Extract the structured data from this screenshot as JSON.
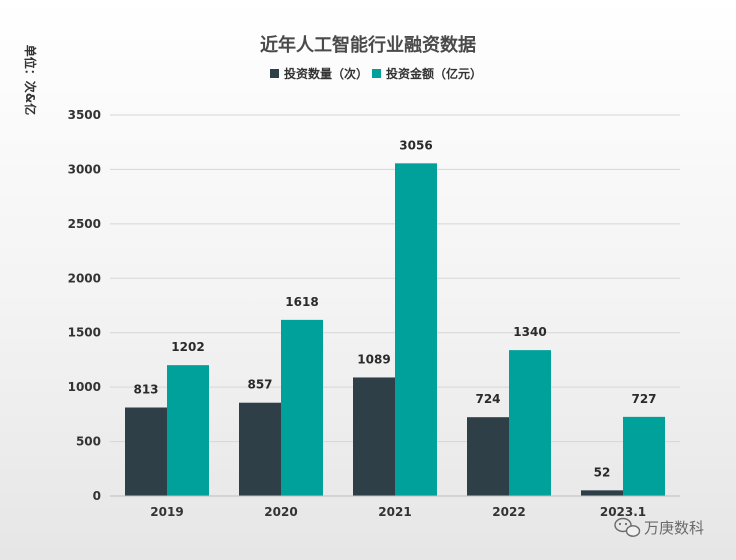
{
  "chart_data": {
    "type": "bar",
    "title": "近年人工智能行业融资数据",
    "unit_label": "单位：次&亿",
    "categories": [
      "2019",
      "2020",
      "2021",
      "2022",
      "2023.1"
    ],
    "series": [
      {
        "name": "投资数量（次）",
        "color": "#2e3f48",
        "values": [
          813,
          857,
          1089,
          724,
          52
        ]
      },
      {
        "name": "投资金额（亿元）",
        "color": "#00a19a",
        "values": [
          1202,
          1618,
          3056,
          1340,
          727
        ]
      }
    ],
    "yticks": [
      "0",
      "500",
      "1000",
      "1500",
      "2000",
      "2500",
      "3000",
      "3500"
    ],
    "ylim": [
      0,
      3500
    ],
    "grid": true,
    "legend_position": "top-center"
  },
  "watermark": {
    "text": "万庚数科",
    "icon": "wechat-icon"
  }
}
